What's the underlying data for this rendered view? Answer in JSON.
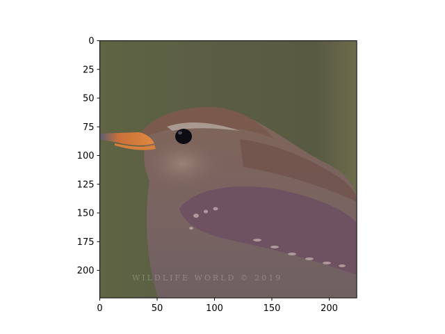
{
  "image": {
    "subject": "wren-close-up",
    "background_color": "#5f6146",
    "bird_colors": {
      "body": "#80695f",
      "crown": "#7b5a4e",
      "wing": "#6e5261",
      "beak": "#d7803d",
      "eye": "#0c0c12",
      "eyebrow": "#b2a49c"
    },
    "watermark": "WILDLIFE WORLD © 2019"
  },
  "axes": {
    "x_ticks": [
      "0",
      "50",
      "100",
      "150",
      "200"
    ],
    "y_ticks": [
      "0",
      "25",
      "50",
      "75",
      "100",
      "125",
      "150",
      "175",
      "200"
    ],
    "x_range": [
      0,
      224
    ],
    "y_range": [
      0,
      224
    ]
  }
}
